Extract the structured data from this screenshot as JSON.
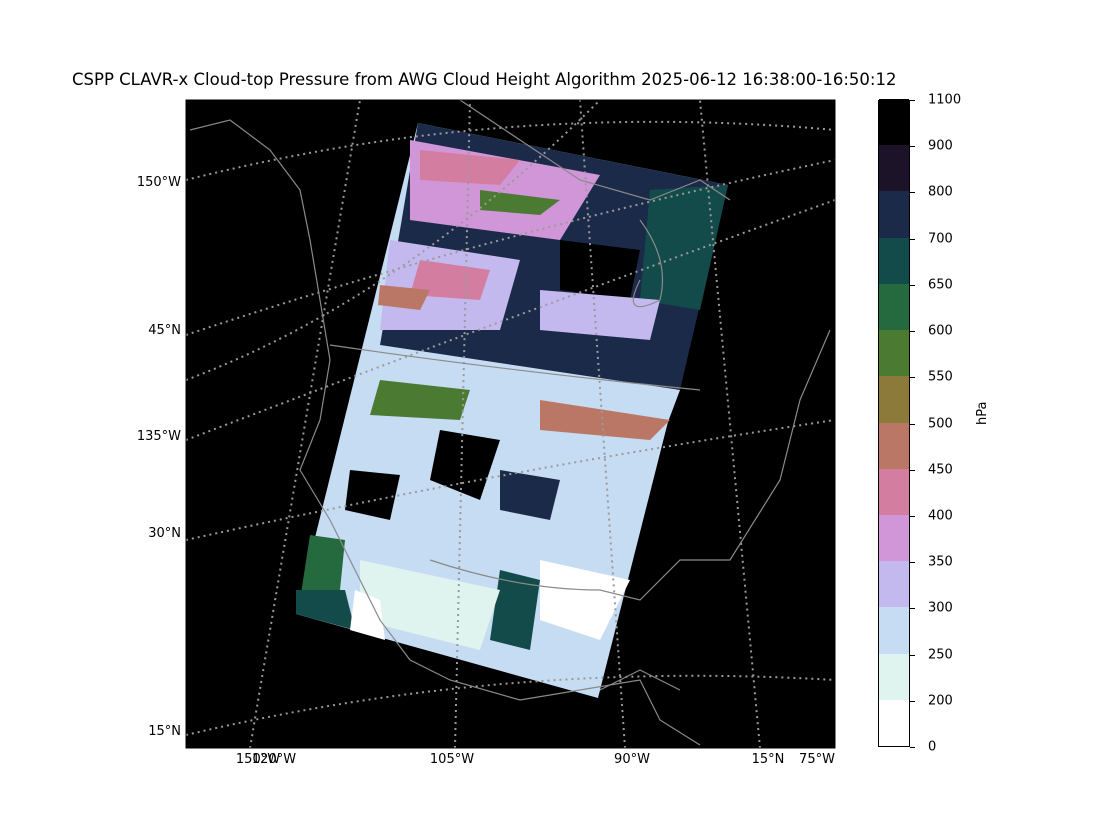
{
  "title": "CSPP CLAVR-x Cloud-top Pressure from AWG Cloud Height Algorithm 2025-06-12 16:38:00-16:50:12",
  "left_axis_labels": [
    "150°W",
    "45°N",
    "135°W",
    "30°N",
    "15°N"
  ],
  "bottom_axis_labels": [
    "150°W",
    "120°W",
    "105°W",
    "90°W",
    "15°N",
    "75°W"
  ],
  "colorbar": {
    "unit": "hPa",
    "ticks": [
      "0",
      "200",
      "250",
      "300",
      "350",
      "400",
      "450",
      "500",
      "550",
      "600",
      "650",
      "700",
      "800",
      "900",
      "1100"
    ],
    "colors": [
      "#ffffff",
      "#dff3ef",
      "#c6dcf2",
      "#c4b9ef",
      "#d096d8",
      "#d37ea1",
      "#bb7766",
      "#8b7a3a",
      "#4b7a33",
      "#256a3e",
      "#134a4a",
      "#1c2a4a",
      "#1c1328",
      "#000000"
    ]
  }
}
